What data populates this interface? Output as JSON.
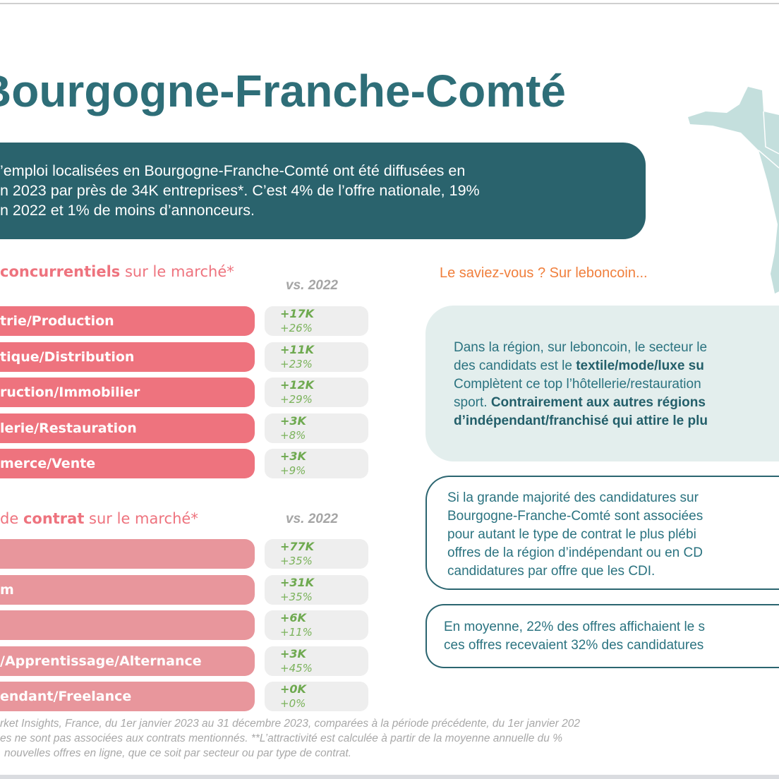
{
  "title": "Bourgogne-Franche-Comté",
  "intro_lines": [
    "’emploi localisées en Bourgogne-Franche-Comté ont été diffusées en",
    "n 2023 par près de 34K entreprises*. C’est 4% de l’offre nationale, 19%",
    "n 2022 et 1% de moins d’annonceurs."
  ],
  "sectors": {
    "heading_bold": "concurrentiels",
    "heading_rest": " sur le marché*",
    "vs_label": "vs. 2022",
    "items": [
      {
        "label": "trie/Production",
        "abs": "+17K",
        "pct": "+26%"
      },
      {
        "label": "tique/Distribution",
        "abs": "+11K",
        "pct": "+23%"
      },
      {
        "label": "ruction/Immobilier",
        "abs": "+12K",
        "pct": "+29%"
      },
      {
        "label": "lerie/Restauration",
        "abs": "+3K",
        "pct": "+8%"
      },
      {
        "label": "merce/Vente",
        "abs": "+3K",
        "pct": "+9%"
      }
    ]
  },
  "contracts": {
    "heading_pre": " de ",
    "heading_bold": "contrat",
    "heading_rest": " sur le marché*",
    "vs_label": "vs. 2022",
    "items": [
      {
        "label": "",
        "abs": "+77K",
        "pct": "+35%"
      },
      {
        "label": "m",
        "abs": "+31K",
        "pct": "+35%"
      },
      {
        "label": "",
        "abs": "+6K",
        "pct": "+11%"
      },
      {
        "label": "/Apprentissage/Alternance",
        "abs": "+3K",
        "pct": "+45%"
      },
      {
        "label": "endant/Freelance",
        "abs": "+0K",
        "pct": "+0%"
      }
    ]
  },
  "saviez": "Le saviez-vous ? Sur leboncoin...",
  "box1": {
    "l1": "Dans la région, sur leboncoin, le secteur le",
    "l2a": "des candidats est le ",
    "l2b": "textile/mode/luxe su",
    "l3": "Complètent ce top l’hôtellerie/restauration",
    "l4a": "sport. ",
    "l4b": "Contrairement aux autres régions",
    "l5": "d’indépendant/franchisé qui attire le plu"
  },
  "box2": [
    "Si la grande majorité des candidatures sur",
    "Bourgogne-Franche-Comté sont associées",
    "pour autant le type de contrat le plus plébi",
    "offres de la région d’indépendant ou en CD",
    "candidatures par offre que les CDI."
  ],
  "box3": [
    "En moyenne, 22% des offres affichaient le s",
    "ces offres recevaient 32% des candidatures"
  ],
  "footer": [
    "rket Insights, France, du 1er janvier 2023 au 31 décembre 2023, comparées à la période précédente, du 1er janvier 202",
    "es ne sont pas associées aux contrats mentionnés. **L’attractivité est calculée à partir de la moyenne annuelle du %",
    "nouvelles offres en ligne, que ce soit par secteur ou par type de contrat."
  ]
}
